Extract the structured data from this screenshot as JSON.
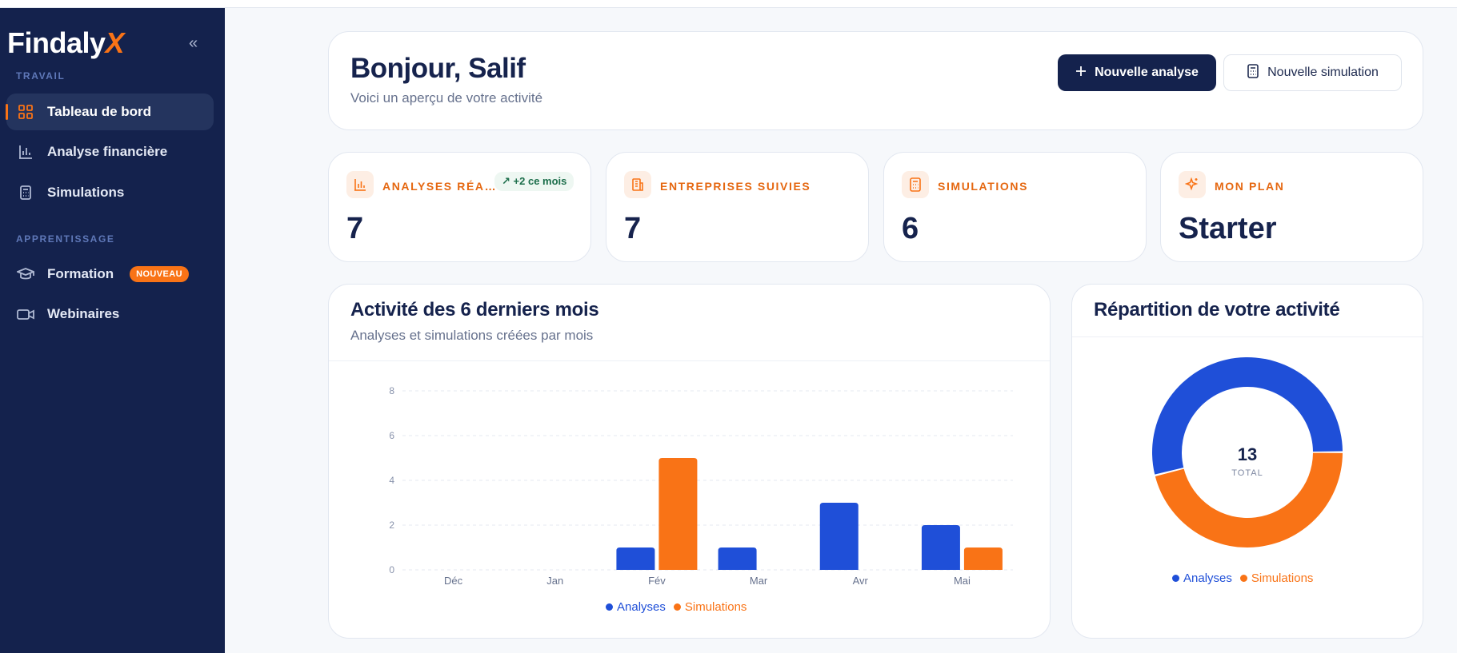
{
  "brand": {
    "name": "Findaly",
    "name_accent": "X"
  },
  "sidebar": {
    "sections": [
      {
        "label": "TRAVAIL"
      },
      {
        "label": "APPRENTISSAGE"
      }
    ],
    "items": [
      {
        "label": "Tableau de bord",
        "icon": "grid-icon"
      },
      {
        "label": "Analyse financière",
        "icon": "bar-chart-icon"
      },
      {
        "label": "Simulations",
        "icon": "calculator-icon"
      },
      {
        "label": "Formation",
        "icon": "graduation-cap-icon",
        "badge": "NOUVEAU"
      },
      {
        "label": "Webinaires",
        "icon": "video-icon"
      }
    ]
  },
  "header": {
    "greeting": "Bonjour, Salif",
    "subtitle": "Voici un aperçu de votre activité",
    "primary_button": "Nouvelle analyse",
    "secondary_button": "Nouvelle simulation"
  },
  "stats": [
    {
      "title": "ANALYSES RÉA…",
      "value": "7",
      "trend": "+2 ce mois",
      "icon": "bar-chart-icon"
    },
    {
      "title": "ENTREPRISES SUIVIES",
      "value": "7",
      "icon": "building-icon"
    },
    {
      "title": "SIMULATIONS",
      "value": "6",
      "icon": "calculator-icon"
    },
    {
      "title": "MON PLAN",
      "value": "Starter",
      "icon": "sparkle-icon"
    }
  ],
  "activity": {
    "title": "Activité des 6 derniers mois",
    "subtitle": "Analyses et simulations créées par mois"
  },
  "distribution": {
    "title": "Répartition de votre activité",
    "total": "13",
    "total_label": "TOTAL"
  },
  "colors": {
    "navy": "#14224d",
    "accent": "#f97316",
    "blue": "#1f4fd8"
  },
  "chart_data": [
    {
      "type": "bar",
      "categories": [
        "Déc",
        "Jan",
        "Fév",
        "Mar",
        "Avr",
        "Mai"
      ],
      "series": [
        {
          "name": "Analyses",
          "values": [
            0,
            0,
            1,
            1,
            3,
            2
          ],
          "color": "#1f4fd8"
        },
        {
          "name": "Simulations",
          "values": [
            0,
            0,
            5,
            0,
            0,
            1
          ],
          "color": "#f97316"
        }
      ],
      "yticks": [
        "0",
        "2",
        "4",
        "6",
        "8"
      ],
      "ylim": [
        0,
        8
      ],
      "grid": true,
      "legend": "bottom"
    },
    {
      "type": "pie",
      "donut": true,
      "labels": [
        "Analyses",
        "Simulations"
      ],
      "values": [
        7,
        6
      ],
      "colors": [
        "#1f4fd8",
        "#f97316"
      ],
      "legend": "bottom"
    }
  ]
}
